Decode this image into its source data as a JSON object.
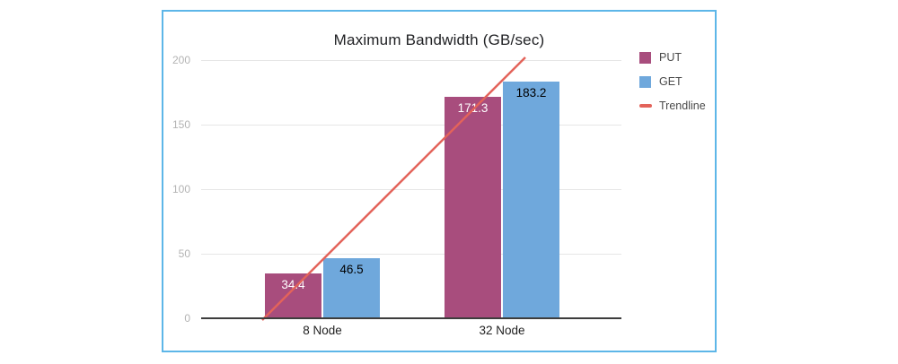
{
  "window": {
    "background": "#ffffff",
    "border_color": "#5db6e8"
  },
  "chart_data": {
    "type": "bar",
    "title": "Maximum Bandwidth (GB/sec)",
    "xlabel": "",
    "ylabel": "",
    "categories": [
      "8 Node",
      "32 Node"
    ],
    "series": [
      {
        "name": "PUT",
        "color": "#a84d7d",
        "label_color": "#ffffff",
        "values": [
          34.4,
          171.3
        ]
      },
      {
        "name": "GET",
        "color": "#6fa8dc",
        "label_color": "#000000",
        "values": [
          46.5,
          183.2
        ]
      }
    ],
    "trendline": {
      "name": "Trendline",
      "color": "#e3635a",
      "start_value": 0,
      "end_value": 200
    },
    "y_axis": {
      "min": 0,
      "max": 200,
      "ticks": [
        0,
        50,
        100,
        150,
        200
      ]
    },
    "legend": {
      "position": "right",
      "items": [
        "PUT",
        "GET",
        "Trendline"
      ]
    },
    "grid": true,
    "colors": {
      "gridline": "#e6e6e6",
      "axis_line": "#3d3d3d",
      "tick_label": "#b3b3b3",
      "category_label": "#1f1f1f",
      "title": "#202124",
      "legend_text": "#4a4a4a"
    }
  }
}
